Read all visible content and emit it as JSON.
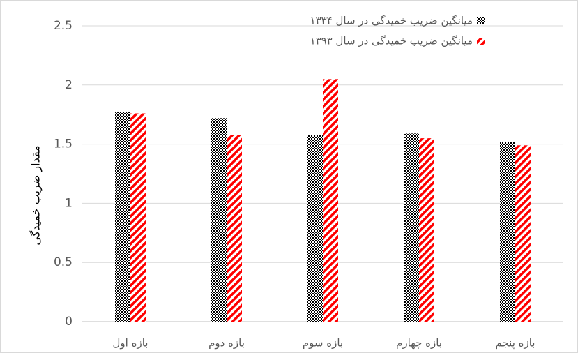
{
  "chart_data": {
    "type": "bar",
    "y_label": "مقدار ضریب خمیدگی",
    "categories": [
      "بازه اول",
      "بازه دوم",
      "بازه سوم",
      "بازه چهارم",
      "بازه پنجم"
    ],
    "series": [
      {
        "name": "میانگین ضریب خمیدگی در سال ۱۳۳۴",
        "color": "#000000",
        "pattern": "checker",
        "values": [
          1.77,
          1.72,
          1.58,
          1.59,
          1.52
        ]
      },
      {
        "name": "میانگین ضریب خمیدگی در سال ۱۳۹۳",
        "color": "#ff0000",
        "pattern": "stripes",
        "values": [
          1.76,
          1.58,
          2.05,
          1.55,
          1.49
        ]
      }
    ],
    "ylim": [
      0,
      2.5
    ],
    "yticks": [
      0,
      0.5,
      1,
      1.5,
      2,
      2.5
    ],
    "grid": true,
    "legend": "top-right"
  }
}
